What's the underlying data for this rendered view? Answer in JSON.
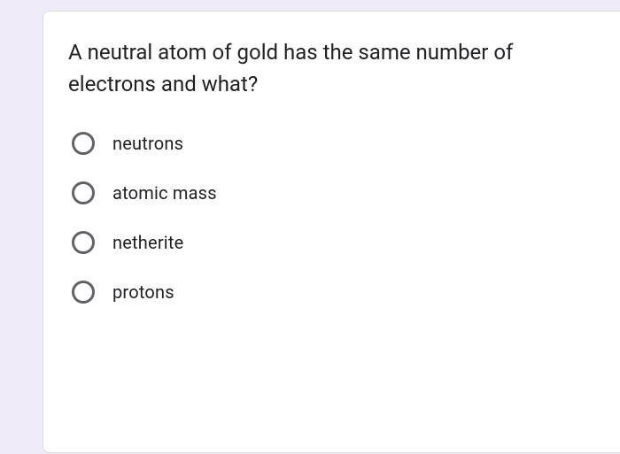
{
  "card": {
    "question": "A neutral atom of gold has the same number of electrons and what?",
    "options": [
      {
        "label": "neutrons"
      },
      {
        "label": "atomic mass"
      },
      {
        "label": "netherite"
      },
      {
        "label": "protons"
      }
    ],
    "style": {
      "page_background": "#f0ebf8",
      "card_background": "#ffffff",
      "card_border": "#dadce0",
      "text_color": "#202124",
      "radio_border": "#5f6368",
      "question_fontsize": 24,
      "option_fontsize": 20
    }
  }
}
